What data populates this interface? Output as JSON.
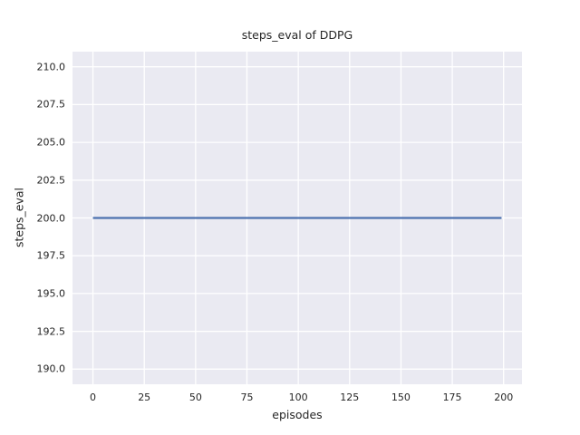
{
  "figure": {
    "title": "steps_eval of DDPG",
    "xlabel": "episodes",
    "ylabel": "steps_eval"
  },
  "chart_data": {
    "type": "line",
    "title": "steps_eval of DDPG",
    "xlabel": "episodes",
    "ylabel": "steps_eval",
    "series": [
      {
        "name": "steps_eval",
        "color": "#4c72b0",
        "constant_value": 200,
        "x": [
          0,
          199
        ],
        "y": [
          200,
          200
        ]
      }
    ],
    "x_ticks": [
      0,
      25,
      50,
      75,
      100,
      125,
      150,
      175,
      200
    ],
    "x_tick_labels": [
      "0",
      "25",
      "50",
      "75",
      "100",
      "125",
      "150",
      "175",
      "200"
    ],
    "y_ticks": [
      190.0,
      192.5,
      195.0,
      197.5,
      200.0,
      202.5,
      205.0,
      207.5,
      210.0
    ],
    "y_tick_labels": [
      "190.0",
      "192.5",
      "195.0",
      "197.5",
      "200.0",
      "202.5",
      "205.0",
      "207.5",
      "210.0"
    ],
    "xlim": [
      -9.95,
      208.95
    ],
    "ylim": [
      189.0,
      211.0
    ],
    "grid": true,
    "legend": null,
    "style": {
      "plot_bg": "#eaeaf2",
      "grid_color": "#ffffff",
      "grid_width": 1.3,
      "line_width": 2.2,
      "text_color": "#262626"
    }
  }
}
